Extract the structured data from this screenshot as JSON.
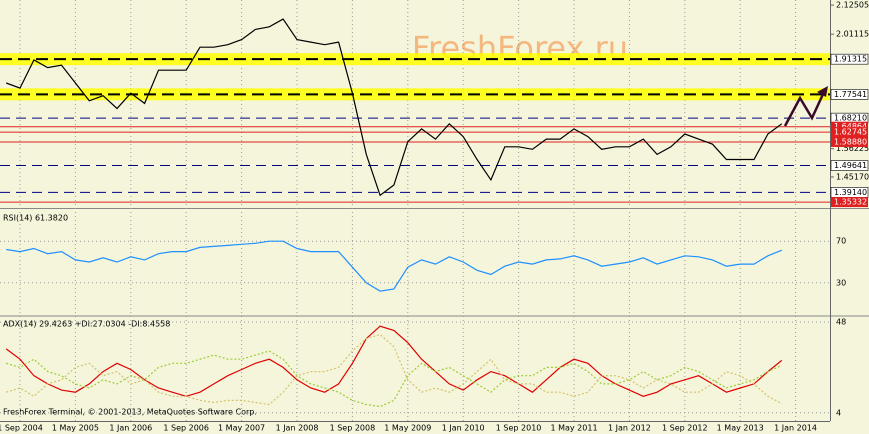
{
  "chart_data": [
    {
      "type": "line",
      "watermark": "FreshForex.ru",
      "color": "#000000",
      "categories": [
        null,
        "1 Sep 2004",
        null,
        null,
        null,
        "1 May 2005",
        null,
        null,
        null,
        "1 Jan 2006",
        null,
        null,
        null,
        "1 Sep 2006",
        null,
        null,
        null,
        "1 May 2007",
        null,
        null,
        null,
        "1 Jan 2008",
        null,
        null,
        null,
        "1 Sep 2008",
        null,
        null,
        null,
        "1 May 2009",
        null,
        null,
        null,
        "1 Jan 2010",
        null,
        null,
        null,
        "1 Sep 2010",
        null,
        null,
        null,
        "1 May 2011",
        null,
        null,
        null,
        "1 Jan 2012",
        null,
        null,
        null,
        "1 Sep 2012",
        null,
        null,
        null,
        "1 May 2013",
        null,
        null,
        null,
        "1 Jan 2014"
      ],
      "values": [
        1.82,
        1.8,
        1.91,
        1.88,
        1.89,
        1.82,
        1.75,
        1.77,
        1.72,
        1.78,
        1.74,
        1.87,
        1.87,
        1.87,
        1.96,
        1.96,
        1.97,
        1.99,
        2.03,
        2.04,
        2.07,
        1.99,
        1.98,
        1.97,
        1.98,
        1.78,
        1.54,
        1.38,
        1.42,
        1.59,
        1.64,
        1.6,
        1.66,
        1.61,
        1.52,
        1.44,
        1.57,
        1.57,
        1.56,
        1.6,
        1.6,
        1.64,
        1.61,
        1.56,
        1.57,
        1.57,
        1.6,
        1.54,
        1.57,
        1.62,
        1.6,
        1.58,
        1.52,
        1.52,
        1.52,
        1.62,
        1.66,
        null
      ],
      "ylim": [
        1.334,
        2.145
      ],
      "yticks": [
        2.12505,
        2.01115,
        1.56225,
        {
          "value": 1.4517,
          "label": "1.45170"
        }
      ],
      "levels": [
        {
          "value": 1.91315,
          "label": "1.91315",
          "color": "#ffff00",
          "style": "band"
        },
        {
          "value": 1.77541,
          "label": "1.77541",
          "color": "#ffff00",
          "style": "band"
        },
        {
          "value": 1.6821,
          "label": "1.68210",
          "color": "#000080",
          "style": "dashed"
        },
        {
          "value": 1.64864,
          "label": "1.64864",
          "color": "#e02020",
          "style": "solid"
        },
        {
          "value": 1.62745,
          "label": "1.62745",
          "color": "#e02020",
          "style": "solid"
        },
        {
          "value": 1.5888,
          "label": "1.58880",
          "color": "#e02020",
          "style": "solid"
        },
        {
          "value": 1.49641,
          "label": "1.49641",
          "color": "#000080",
          "style": "dashed"
        },
        {
          "value": 1.3914,
          "label": "1.39140",
          "color": "#000080",
          "style": "dashed"
        },
        {
          "value": 1.35332,
          "label": "1.35332",
          "color": "#e02020",
          "style": "solid"
        }
      ]
    },
    {
      "type": "line",
      "title": "RSI(14) 61.3820",
      "color": "#1e90ff",
      "values": [
        62,
        60,
        63,
        58,
        60,
        52,
        50,
        54,
        50,
        55,
        52,
        58,
        60,
        60,
        64,
        65,
        66,
        67,
        68,
        70,
        70,
        63,
        60,
        60,
        60,
        45,
        30,
        22,
        24,
        45,
        52,
        48,
        55,
        50,
        42,
        38,
        46,
        50,
        48,
        52,
        53,
        56,
        52,
        46,
        48,
        50,
        54,
        48,
        52,
        56,
        55,
        52,
        46,
        48,
        48,
        56,
        61.382,
        null
      ],
      "ylim": [
        0,
        100
      ],
      "yticks": [
        70,
        30
      ]
    },
    {
      "type": "line",
      "title": "ADX(14) 29.4263 +DI:27.0304 -DI:8.4558",
      "series": [
        {
          "color": "#e00000",
          "dash": false,
          "values": [
            35,
            30,
            22,
            18,
            15,
            14,
            18,
            24,
            28,
            25,
            20,
            16,
            14,
            12,
            14,
            18,
            22,
            25,
            28,
            30,
            26,
            20,
            16,
            14,
            18,
            28,
            40,
            46,
            44,
            38,
            30,
            24,
            18,
            15,
            20,
            24,
            22,
            18,
            14,
            20,
            26,
            30,
            28,
            22,
            18,
            15,
            12,
            14,
            18,
            20,
            22,
            18,
            14,
            16,
            18,
            24,
            29.4263,
            null
          ]
        },
        {
          "color": "#9acd32",
          "dash": true,
          "values": [
            28,
            26,
            30,
            24,
            22,
            18,
            16,
            20,
            18,
            22,
            20,
            26,
            28,
            28,
            30,
            32,
            30,
            30,
            32,
            34,
            30,
            22,
            18,
            16,
            14,
            10,
            8,
            7,
            10,
            22,
            28,
            24,
            26,
            22,
            18,
            14,
            20,
            22,
            22,
            26,
            26,
            28,
            24,
            18,
            18,
            20,
            24,
            20,
            22,
            26,
            24,
            20,
            16,
            18,
            20,
            24,
            27.0304,
            null
          ]
        },
        {
          "color": "#d2c36a",
          "dash": true,
          "values": [
            14,
            16,
            12,
            18,
            20,
            26,
            28,
            22,
            24,
            18,
            20,
            14,
            12,
            12,
            10,
            9,
            10,
            10,
            9,
            8,
            14,
            22,
            24,
            24,
            26,
            34,
            40,
            42,
            36,
            20,
            14,
            16,
            14,
            18,
            24,
            30,
            20,
            18,
            18,
            14,
            14,
            12,
            14,
            22,
            22,
            20,
            16,
            20,
            18,
            14,
            14,
            18,
            24,
            22,
            18,
            12,
            8.4558,
            null
          ]
        }
      ],
      "ylim": [
        0,
        50
      ],
      "yticks": [
        48,
        4
      ],
      "footer": "FreshForex Terminal, © 2001-2013, MetaQuotes Software Corp."
    }
  ]
}
